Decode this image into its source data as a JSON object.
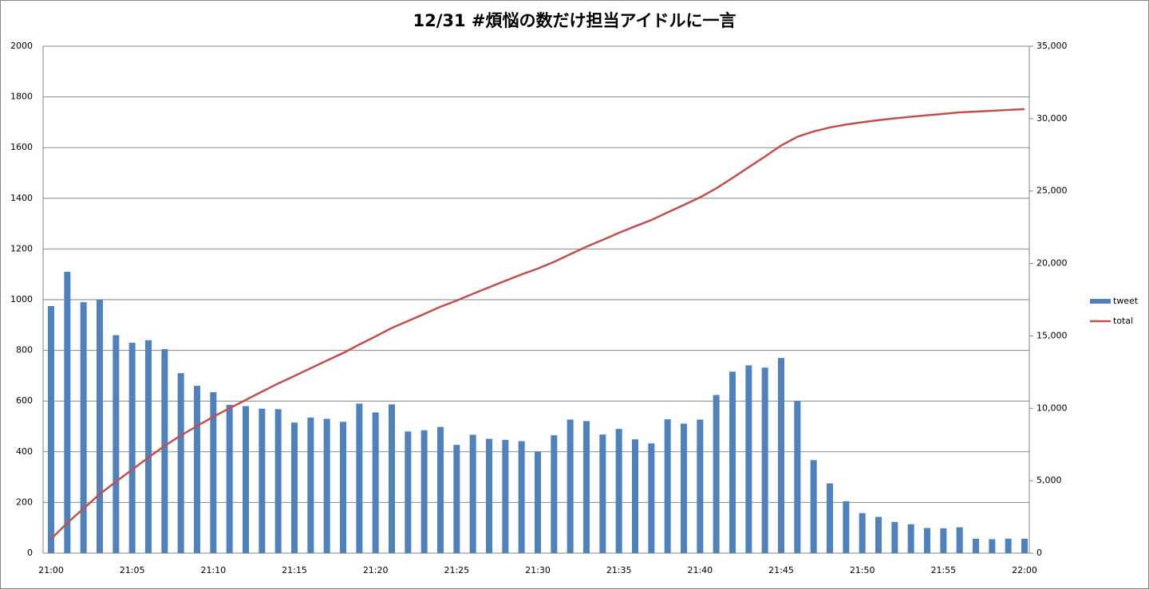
{
  "chart_data": {
    "type": "bar",
    "title": "12/31 #煩悩の数だけ担当アイドルに一言",
    "categories": [
      "21:00",
      null,
      null,
      null,
      null,
      "21:05",
      null,
      null,
      null,
      null,
      "21:10",
      null,
      null,
      null,
      null,
      "21:15",
      null,
      null,
      null,
      null,
      "21:20",
      null,
      null,
      null,
      null,
      "21:25",
      null,
      null,
      null,
      null,
      "21:30",
      null,
      null,
      null,
      null,
      "21:35",
      null,
      null,
      null,
      null,
      "21:40",
      null,
      null,
      null,
      null,
      "21:45",
      null,
      null,
      null,
      null,
      "21:50",
      null,
      null,
      null,
      null,
      "21:55",
      null,
      null,
      null,
      null,
      "22:00"
    ],
    "series": [
      {
        "name": "tweet",
        "type": "bar",
        "color": "#4f81bd",
        "values": [
          975,
          1110,
          990,
          1000,
          860,
          830,
          840,
          805,
          710,
          660,
          635,
          585,
          580,
          570,
          568,
          515,
          535,
          530,
          518,
          590,
          555,
          587,
          480,
          485,
          498,
          427,
          467,
          451,
          447,
          442,
          401,
          465,
          527,
          521,
          468,
          490,
          449,
          433,
          528,
          511,
          527,
          624,
          716,
          741,
          732,
          770,
          600,
          367,
          275,
          205,
          158,
          143,
          123,
          114,
          99,
          98,
          102,
          57,
          55,
          57,
          57
        ]
      },
      {
        "name": "total",
        "type": "line",
        "axis": "y2",
        "color": "#c0504d",
        "values": [
          975,
          2085,
          3075,
          4075,
          4935,
          5765,
          6605,
          7410,
          8120,
          8780,
          9415,
          10000,
          10580,
          11150,
          11718,
          12233,
          12768,
          13298,
          13816,
          14406,
          14961,
          15548,
          16028,
          16513,
          17011,
          17438,
          17905,
          18356,
          18803,
          19245,
          19646,
          20111,
          20638,
          21159,
          21627,
          22117,
          22566,
          22999,
          23527,
          24038,
          24565,
          25189,
          25905,
          26646,
          27378,
          28148,
          28748,
          29115,
          29390,
          29595,
          29753,
          29896,
          30019,
          30133,
          30232,
          30330,
          30432,
          30489,
          30544,
          30601,
          30658
        ]
      }
    ],
    "ylim": [
      0,
      2000
    ],
    "yticks": [
      0,
      200,
      400,
      600,
      800,
      1000,
      1200,
      1400,
      1600,
      1800,
      2000
    ],
    "y2lim": [
      0,
      35000
    ],
    "y2ticks": [
      0,
      {
        "value": 5000,
        "label": "5,000"
      },
      {
        "value": 10000,
        "label": "10,000"
      },
      {
        "value": 15000,
        "label": "15,000"
      },
      {
        "value": 20000,
        "label": "20,000"
      },
      {
        "value": 25000,
        "label": "25,000"
      },
      {
        "value": 30000,
        "label": "30,000"
      },
      {
        "value": 35000,
        "label": "35,000"
      }
    ],
    "grid": true,
    "legend": "right"
  }
}
